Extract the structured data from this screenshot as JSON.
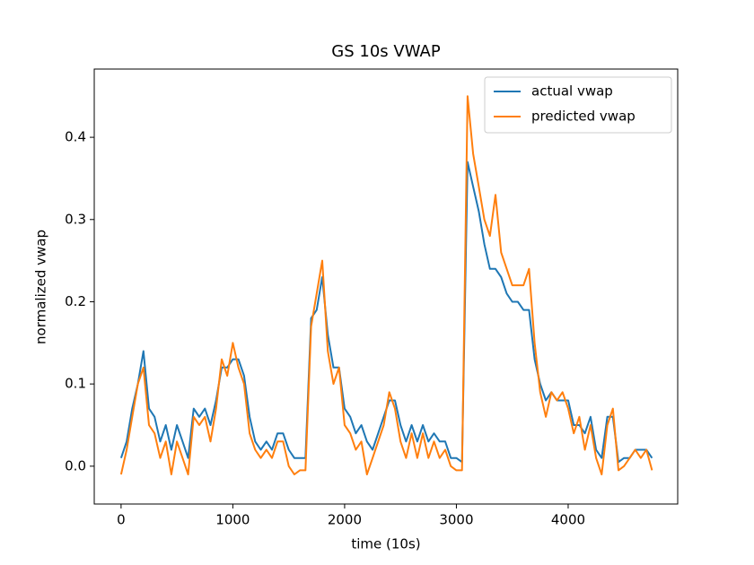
{
  "chart_data": {
    "type": "line",
    "title": "GS 10s VWAP",
    "x_label": "time (10s)",
    "y_label": "normalized vwap",
    "x": [
      0,
      50,
      100,
      150,
      200,
      250,
      300,
      350,
      400,
      450,
      500,
      550,
      600,
      650,
      700,
      750,
      800,
      850,
      900,
      950,
      1000,
      1050,
      1100,
      1150,
      1200,
      1250,
      1300,
      1350,
      1400,
      1450,
      1500,
      1550,
      1600,
      1650,
      1700,
      1750,
      1800,
      1850,
      1900,
      1950,
      2000,
      2050,
      2100,
      2150,
      2200,
      2250,
      2300,
      2350,
      2400,
      2450,
      2500,
      2550,
      2600,
      2650,
      2700,
      2750,
      2800,
      2850,
      2900,
      2950,
      3000,
      3050,
      3100,
      3150,
      3200,
      3250,
      3300,
      3350,
      3400,
      3450,
      3500,
      3550,
      3600,
      3650,
      3700,
      3750,
      3800,
      3850,
      3900,
      3950,
      4000,
      4050,
      4100,
      4150,
      4200,
      4250,
      4300,
      4350,
      4400,
      4450,
      4500,
      4550,
      4600,
      4650,
      4700,
      4750
    ],
    "series": [
      {
        "name": "actual vwap",
        "color": "#1f77b4",
        "values": [
          0.01,
          0.03,
          0.07,
          0.1,
          0.14,
          0.07,
          0.06,
          0.03,
          0.05,
          0.02,
          0.05,
          0.03,
          0.01,
          0.07,
          0.06,
          0.07,
          0.05,
          0.08,
          0.12,
          0.12,
          0.13,
          0.13,
          0.11,
          0.06,
          0.03,
          0.02,
          0.03,
          0.02,
          0.04,
          0.04,
          0.02,
          0.01,
          0.01,
          0.01,
          0.18,
          0.19,
          0.23,
          0.16,
          0.12,
          0.12,
          0.07,
          0.06,
          0.04,
          0.05,
          0.03,
          0.02,
          0.04,
          0.06,
          0.08,
          0.08,
          0.05,
          0.03,
          0.05,
          0.03,
          0.05,
          0.03,
          0.04,
          0.03,
          0.03,
          0.01,
          0.01,
          0.005,
          0.37,
          0.34,
          0.31,
          0.27,
          0.24,
          0.24,
          0.23,
          0.21,
          0.2,
          0.2,
          0.19,
          0.19,
          0.13,
          0.1,
          0.08,
          0.09,
          0.08,
          0.08,
          0.08,
          0.05,
          0.05,
          0.04,
          0.06,
          0.02,
          0.01,
          0.06,
          0.06,
          0.005,
          0.01,
          0.01,
          0.02,
          0.02,
          0.02,
          0.01
        ]
      },
      {
        "name": "predicted vwap",
        "color": "#ff7f0e",
        "values": [
          -0.01,
          0.02,
          0.06,
          0.1,
          0.12,
          0.05,
          0.04,
          0.01,
          0.03,
          -0.01,
          0.03,
          0.01,
          -0.01,
          0.06,
          0.05,
          0.06,
          0.03,
          0.07,
          0.13,
          0.11,
          0.15,
          0.12,
          0.1,
          0.04,
          0.02,
          0.01,
          0.02,
          0.01,
          0.03,
          0.03,
          0.0,
          -0.01,
          -0.005,
          -0.005,
          0.17,
          0.21,
          0.25,
          0.14,
          0.1,
          0.12,
          0.05,
          0.04,
          0.02,
          0.03,
          -0.01,
          0.01,
          0.03,
          0.05,
          0.09,
          0.07,
          0.03,
          0.01,
          0.04,
          0.01,
          0.04,
          0.01,
          0.03,
          0.01,
          0.02,
          0.0,
          -0.005,
          -0.005,
          0.45,
          0.38,
          0.34,
          0.3,
          0.28,
          0.33,
          0.26,
          0.24,
          0.22,
          0.22,
          0.22,
          0.24,
          0.15,
          0.09,
          0.06,
          0.09,
          0.08,
          0.09,
          0.07,
          0.04,
          0.06,
          0.02,
          0.05,
          0.01,
          -0.01,
          0.05,
          0.07,
          -0.005,
          0.0,
          0.01,
          0.02,
          0.01,
          0.02,
          -0.005
        ]
      }
    ],
    "xlim": [
      -240,
      4980
    ],
    "xticks": [
      0,
      1000,
      2000,
      3000,
      4000
    ],
    "ylim": [
      -0.046,
      0.483
    ],
    "yticks": [
      {
        "value": 0,
        "label": "0.0"
      },
      0.1,
      0.2,
      0.3,
      0.4
    ],
    "legend": "upper right"
  }
}
